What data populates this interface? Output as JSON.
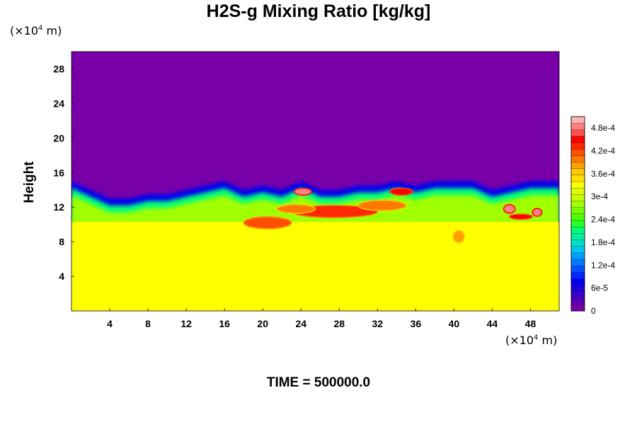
{
  "chart_data": {
    "type": "heatmap",
    "title": "H2S-g Mixing Ratio [kg/kg]",
    "ylabel": "Height",
    "xlabel": "",
    "x_unit": {
      "prefix": "(×10",
      "exponent": "4",
      "suffix": " m)"
    },
    "y_unit": {
      "prefix": "(×10",
      "exponent": "4",
      "suffix": " m)"
    },
    "xlim": [
      0,
      51
    ],
    "ylim": [
      0,
      30
    ],
    "x_ticks": [
      4,
      8,
      12,
      16,
      20,
      24,
      28,
      32,
      36,
      40,
      44,
      48
    ],
    "y_ticks": [
      4,
      8,
      12,
      16,
      20,
      24,
      28
    ],
    "colorbar": {
      "range": [
        0,
        0.00051
      ],
      "ticks": [
        {
          "value": 0,
          "label": "0"
        },
        {
          "value": 6e-05,
          "label": "6e-5"
        },
        {
          "value": 0.00012,
          "label": "1.2e-4"
        },
        {
          "value": 0.00018,
          "label": "1.8e-4"
        },
        {
          "value": 0.00024,
          "label": "2.4e-4"
        },
        {
          "value": 0.0003,
          "label": "3e-4"
        },
        {
          "value": 0.00036,
          "label": "3.6e-4"
        },
        {
          "value": 0.00042,
          "label": "4.2e-4"
        },
        {
          "value": 0.00048,
          "label": "4.8e-4"
        }
      ],
      "colors": [
        "#7800a8",
        "#5a00b4",
        "#3c00c8",
        "#1e00dc",
        "#0000f0",
        "#0028ff",
        "#0050ff",
        "#0078ff",
        "#00a0ff",
        "#00c8f0",
        "#00e0c8",
        "#00f0a0",
        "#00ff78",
        "#28ff28",
        "#50ff00",
        "#78ff00",
        "#a0ff00",
        "#c8ff00",
        "#ddff00",
        "#ffff00",
        "#ffe000",
        "#ffc800",
        "#ffa000",
        "#ff7800",
        "#ff5000",
        "#ff2800",
        "#ff0000",
        "#ff5050",
        "#ff8080",
        "#ffb4b4"
      ]
    },
    "background_value": 0,
    "lower_layer": {
      "top_height": 10.3,
      "value": 0.00033
    },
    "interface_profile": {
      "x": [
        0,
        2,
        4,
        6,
        8,
        10,
        12,
        14,
        16,
        18,
        20,
        22,
        24,
        26,
        28,
        30,
        32,
        34,
        36,
        38,
        40,
        42,
        44,
        46,
        48,
        51
      ],
      "top_height": [
        15,
        14,
        13,
        13,
        13.5,
        13.5,
        14,
        14.5,
        15,
        14,
        14.5,
        14,
        15,
        14,
        14,
        14.5,
        14.5,
        15,
        14.5,
        15,
        15,
        15,
        14,
        14.5,
        15,
        15
      ]
    },
    "hotspots": [
      {
        "x": 20.5,
        "y": 10.2,
        "rx": 2.5,
        "ry": 0.7,
        "value": 0.00042
      },
      {
        "x": 27.5,
        "y": 11.5,
        "rx": 4.5,
        "ry": 0.7,
        "value": 0.00044
      },
      {
        "x": 23.5,
        "y": 11.8,
        "rx": 2.0,
        "ry": 0.5,
        "value": 0.0004
      },
      {
        "x": 32.5,
        "y": 12.2,
        "rx": 2.5,
        "ry": 0.6,
        "value": 0.0004
      },
      {
        "x": 34.5,
        "y": 13.8,
        "rx": 1.2,
        "ry": 0.4,
        "value": 0.00045
      },
      {
        "x": 24.2,
        "y": 13.8,
        "rx": 0.9,
        "ry": 0.4,
        "value": 0.00049
      },
      {
        "x": 45.8,
        "y": 11.8,
        "rx": 0.6,
        "ry": 0.5,
        "value": 0.00049
      },
      {
        "x": 48.7,
        "y": 11.4,
        "rx": 0.5,
        "ry": 0.45,
        "value": 0.00049
      },
      {
        "x": 47,
        "y": 10.9,
        "rx": 1.2,
        "ry": 0.3,
        "value": 0.00045
      },
      {
        "x": 40.5,
        "y": 8.6,
        "rx": 0.6,
        "ry": 0.7,
        "value": 0.00039
      }
    ]
  },
  "footer": {
    "label": "TIME = 500000.0"
  }
}
